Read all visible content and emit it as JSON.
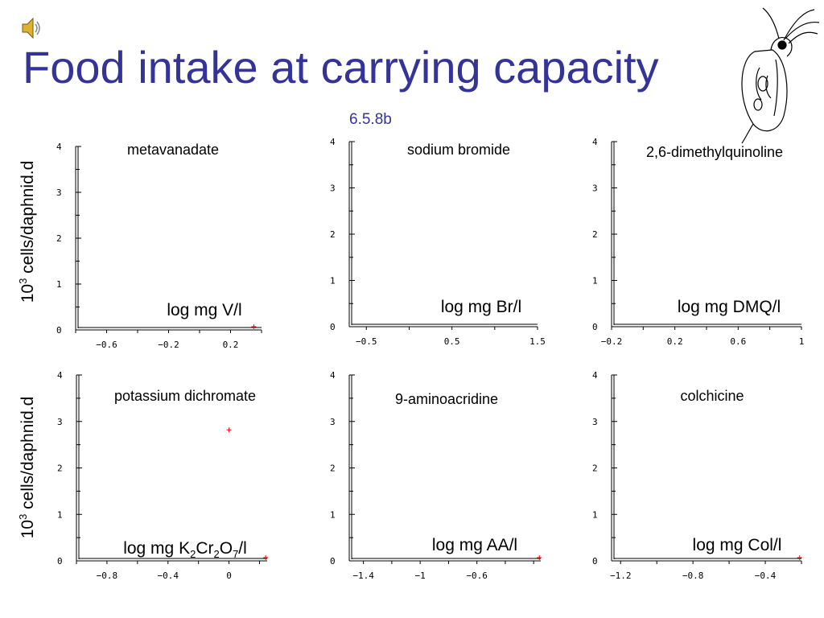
{
  "slide": {
    "title": "Food intake at carrying capacity",
    "code": "6.5.8b",
    "ylabel_base": "10",
    "ylabel_exp": "3",
    "ylabel_rest": " cells/daphnid.d"
  },
  "icons": {
    "speaker": "speaker-icon",
    "daphnia": "daphnia-illustration"
  },
  "colors": {
    "title": "#333399",
    "marker": "#ff0000",
    "axis": "#000000"
  },
  "chart_data": [
    {
      "type": "scatter",
      "title": "metavanadate",
      "xlabel": "log mg V/l",
      "ylabel": "10^3 cells/daphnid.d",
      "xlim": [
        -0.8,
        0.4
      ],
      "ylim": [
        0,
        4
      ],
      "xticks": [
        -0.6,
        -0.2,
        0.2
      ],
      "yticks": [
        0,
        1,
        2,
        3,
        4
      ],
      "points": [
        {
          "x": 0.35,
          "y": 0
        }
      ]
    },
    {
      "type": "scatter",
      "title": "sodium bromide",
      "xlabel": "log mg Br/l",
      "ylabel": "10^3 cells/daphnid.d",
      "xlim": [
        -0.7,
        1.5
      ],
      "ylim": [
        0,
        4
      ],
      "xticks": [
        -0.5,
        0.5,
        1.5
      ],
      "yticks": [
        0,
        1,
        2,
        3,
        4
      ],
      "points": []
    },
    {
      "type": "scatter",
      "title": "2,6-dimethylquinoline",
      "xlabel": "log mg DMQ/l",
      "ylabel": "10^3 cells/daphnid.d",
      "xlim": [
        -0.2,
        1.0
      ],
      "ylim": [
        0,
        4
      ],
      "xticks": [
        -0.2,
        0.2,
        0.6,
        1
      ],
      "yticks": [
        0,
        1,
        2,
        3,
        4
      ],
      "points": []
    },
    {
      "type": "scatter",
      "title": "potassium dichromate",
      "xlabel_parts": [
        "log mg K",
        "2",
        "Cr",
        "2",
        "O",
        "7",
        "/l"
      ],
      "ylabel": "10^3 cells/daphnid.d",
      "xlim": [
        -1.0,
        0.25
      ],
      "ylim": [
        0,
        4
      ],
      "xticks": [
        -0.8,
        -0.4,
        0
      ],
      "yticks": [
        0,
        1,
        2,
        3,
        4
      ],
      "points": [
        {
          "x": 0.0,
          "y": 2.75
        },
        {
          "x": 0.24,
          "y": 0
        }
      ]
    },
    {
      "type": "scatter",
      "title": "9-aminoacridine",
      "xlabel": "log mg AA/l",
      "ylabel": "10^3 cells/daphnid.d",
      "xlim": [
        -1.5,
        -0.15
      ],
      "ylim": [
        0,
        4
      ],
      "xticks": [
        -1.4,
        -1,
        -0.6
      ],
      "yticks": [
        0,
        1,
        2,
        3,
        4
      ],
      "points": [
        {
          "x": -0.16,
          "y": 0
        }
      ]
    },
    {
      "type": "scatter",
      "title": "colchicine",
      "xlabel": "log mg Col/l",
      "ylabel": "10^3 cells/daphnid.d",
      "xlim": [
        -1.25,
        -0.2
      ],
      "ylim": [
        0,
        4
      ],
      "xticks": [
        -1.2,
        -0.8,
        -0.4
      ],
      "yticks": [
        0,
        1,
        2,
        3,
        4
      ],
      "points": [
        {
          "x": -0.21,
          "y": 0
        }
      ]
    }
  ]
}
